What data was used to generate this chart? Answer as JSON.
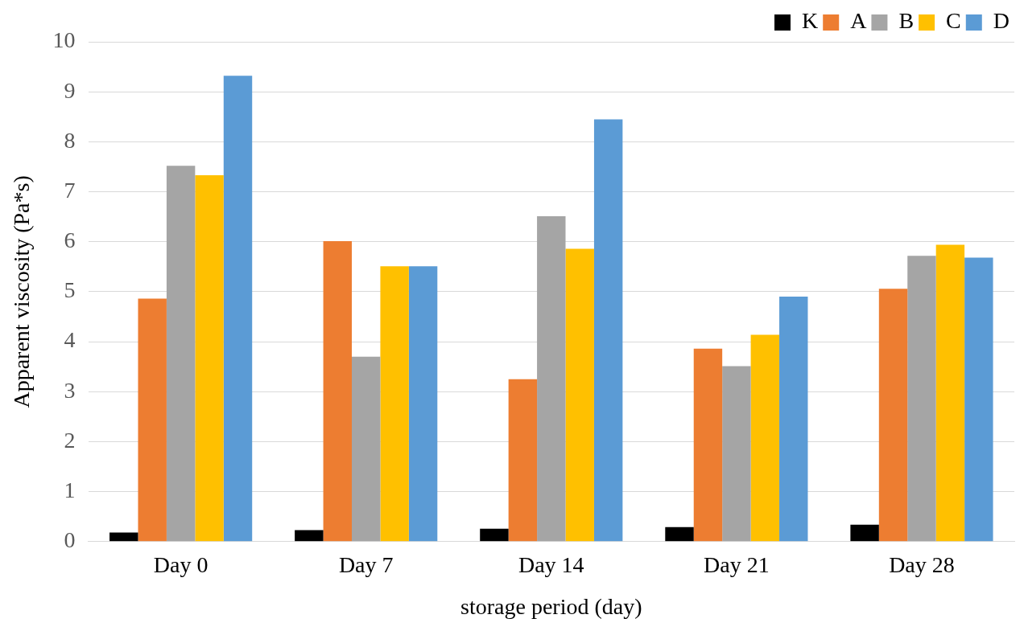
{
  "chart_data": {
    "type": "bar",
    "xlabel": "storage period (day)",
    "ylabel": "Apparent viscosity (Pa*s)",
    "categories": [
      "Day 0",
      "Day 7",
      "Day 14",
      "Day 21",
      "Day 28"
    ],
    "series": [
      {
        "name": "K",
        "color": "#000000",
        "values": [
          0.18,
          0.23,
          0.26,
          0.29,
          0.34
        ]
      },
      {
        "name": "A",
        "color": "#ed7d31",
        "values": [
          4.86,
          6.01,
          3.25,
          3.86,
          5.06
        ]
      },
      {
        "name": "B",
        "color": "#a5a5a5",
        "values": [
          7.52,
          3.7,
          6.51,
          3.51,
          5.72
        ]
      },
      {
        "name": "C",
        "color": "#ffc000",
        "values": [
          7.33,
          5.51,
          5.86,
          4.14,
          5.94
        ]
      },
      {
        "name": "D",
        "color": "#5b9bd5",
        "values": [
          9.32,
          5.51,
          8.45,
          4.9,
          5.68
        ]
      }
    ],
    "ylim": [
      0,
      10
    ],
    "yticks": [
      0,
      1,
      2,
      3,
      4,
      5,
      6,
      7,
      8,
      9,
      10
    ],
    "grid": "y",
    "legend": "top right"
  }
}
